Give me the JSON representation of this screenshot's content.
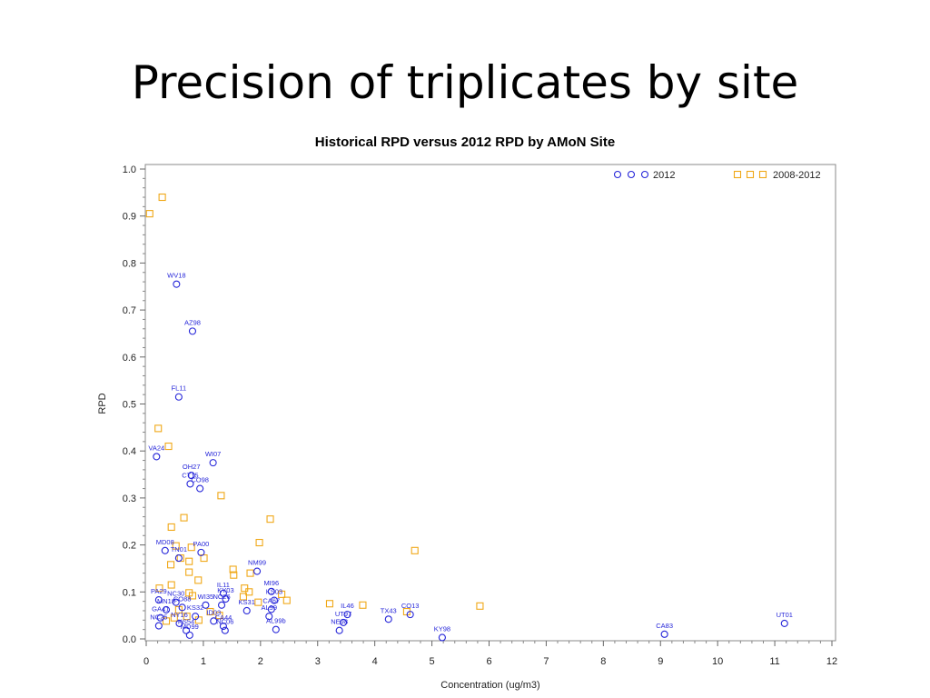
{
  "slide": {
    "title": "Precision of triplicates by site"
  },
  "chart_data": {
    "type": "scatter",
    "title": "Historical RPD versus 2012 RPD by AMoN Site",
    "xlabel": "Concentration (ug/m3)",
    "ylabel": "RPD",
    "xlim": [
      0,
      12
    ],
    "ylim": [
      0,
      1.0
    ],
    "xticks": [
      "0",
      "1",
      "2",
      "3",
      "4",
      "5",
      "6",
      "7",
      "8",
      "9",
      "10",
      "11",
      "12"
    ],
    "yticks": [
      "0.0",
      "0.1",
      "0.2",
      "0.3",
      "0.4",
      "0.5",
      "0.6",
      "0.7",
      "0.8",
      "0.9",
      "1.0"
    ],
    "legend_position": "top-right",
    "series": [
      {
        "name": "2012",
        "marker": "circle",
        "color": "#2626d9",
        "points": [
          {
            "x": 0.53,
            "y": 0.755,
            "label": "WV18"
          },
          {
            "x": 0.81,
            "y": 0.655,
            "label": "AZ98"
          },
          {
            "x": 0.57,
            "y": 0.515,
            "label": "FL11"
          },
          {
            "x": 0.18,
            "y": 0.388,
            "label": "VA24"
          },
          {
            "x": 1.17,
            "y": 0.375,
            "label": "WI07"
          },
          {
            "x": 0.79,
            "y": 0.348,
            "label": "OH27"
          },
          {
            "x": 0.77,
            "y": 0.33,
            "label": "CT15"
          },
          {
            "x": 0.94,
            "y": 0.32,
            "label": "CO98"
          },
          {
            "x": 0.33,
            "y": 0.188,
            "label": "MD08"
          },
          {
            "x": 0.96,
            "y": 0.184,
            "label": "PA00"
          },
          {
            "x": 0.57,
            "y": 0.172,
            "label": "TN01"
          },
          {
            "x": 1.94,
            "y": 0.144,
            "label": "NM99"
          },
          {
            "x": 1.35,
            "y": 0.097,
            "label": "IL11"
          },
          {
            "x": 1.39,
            "y": 0.085,
            "label": "KY03"
          },
          {
            "x": 2.19,
            "y": 0.101,
            "label": "MI96"
          },
          {
            "x": 1.32,
            "y": 0.072,
            "label": "NC26"
          },
          {
            "x": 2.24,
            "y": 0.082,
            "label": "KS03"
          },
          {
            "x": 1.76,
            "y": 0.06,
            "label": "KS31"
          },
          {
            "x": 0.52,
            "y": 0.078,
            "label": "NC30"
          },
          {
            "x": 0.22,
            "y": 0.083,
            "label": "PA29"
          },
          {
            "x": 0.63,
            "y": 0.067,
            "label": "CO88"
          },
          {
            "x": 0.35,
            "y": 0.062,
            "label": "MN18"
          },
          {
            "x": 1.04,
            "y": 0.072,
            "label": "WI35"
          },
          {
            "x": 2.19,
            "y": 0.063,
            "label": "CA67"
          },
          {
            "x": 0.25,
            "y": 0.045,
            "label": "GA41"
          },
          {
            "x": 0.86,
            "y": 0.048,
            "label": "KS32"
          },
          {
            "x": 1.18,
            "y": 0.038,
            "label": "ID03"
          },
          {
            "x": 2.15,
            "y": 0.048,
            "label": "AL99"
          },
          {
            "x": 0.58,
            "y": 0.033,
            "label": "NY16"
          },
          {
            "x": 1.35,
            "y": 0.027,
            "label": "CA44"
          },
          {
            "x": 0.22,
            "y": 0.028,
            "label": "NC25"
          },
          {
            "x": 0.7,
            "y": 0.018,
            "label": "KS54"
          },
          {
            "x": 1.38,
            "y": 0.018,
            "label": "NC06"
          },
          {
            "x": 0.76,
            "y": 0.008,
            "label": "MD99"
          },
          {
            "x": 2.27,
            "y": 0.02,
            "label": "AL99b"
          },
          {
            "x": 3.52,
            "y": 0.052,
            "label": "IL46"
          },
          {
            "x": 3.45,
            "y": 0.035,
            "label": "UT97"
          },
          {
            "x": 3.38,
            "y": 0.018,
            "label": "NE98"
          },
          {
            "x": 4.24,
            "y": 0.042,
            "label": "TX43"
          },
          {
            "x": 4.62,
            "y": 0.052,
            "label": "CO13"
          },
          {
            "x": 5.18,
            "y": 0.003,
            "label": "KY98"
          },
          {
            "x": 9.07,
            "y": 0.01,
            "label": "CA83"
          },
          {
            "x": 11.17,
            "y": 0.033,
            "label": "UT01"
          }
        ]
      },
      {
        "name": "2008-2012",
        "marker": "square",
        "color": "#f0a818",
        "points": [
          {
            "x": 0.06,
            "y": 0.905
          },
          {
            "x": 0.28,
            "y": 0.94
          },
          {
            "x": 0.21,
            "y": 0.448
          },
          {
            "x": 0.39,
            "y": 0.41
          },
          {
            "x": 1.31,
            "y": 0.305
          },
          {
            "x": 0.66,
            "y": 0.258
          },
          {
            "x": 0.44,
            "y": 0.238
          },
          {
            "x": 2.17,
            "y": 0.255
          },
          {
            "x": 0.52,
            "y": 0.198
          },
          {
            "x": 0.79,
            "y": 0.195
          },
          {
            "x": 4.7,
            "y": 0.188
          },
          {
            "x": 1.98,
            "y": 0.205
          },
          {
            "x": 0.6,
            "y": 0.172
          },
          {
            "x": 1.01,
            "y": 0.172
          },
          {
            "x": 0.75,
            "y": 0.165
          },
          {
            "x": 0.43,
            "y": 0.158
          },
          {
            "x": 1.52,
            "y": 0.148
          },
          {
            "x": 0.75,
            "y": 0.142
          },
          {
            "x": 1.53,
            "y": 0.136
          },
          {
            "x": 1.82,
            "y": 0.14
          },
          {
            "x": 0.91,
            "y": 0.125
          },
          {
            "x": 0.44,
            "y": 0.115
          },
          {
            "x": 0.23,
            "y": 0.108
          },
          {
            "x": 1.72,
            "y": 0.108
          },
          {
            "x": 0.75,
            "y": 0.098
          },
          {
            "x": 0.81,
            "y": 0.092
          },
          {
            "x": 1.8,
            "y": 0.1
          },
          {
            "x": 2.37,
            "y": 0.095
          },
          {
            "x": 1.7,
            "y": 0.09
          },
          {
            "x": 2.46,
            "y": 0.082
          },
          {
            "x": 1.96,
            "y": 0.078
          },
          {
            "x": 3.21,
            "y": 0.075
          },
          {
            "x": 3.79,
            "y": 0.072
          },
          {
            "x": 5.84,
            "y": 0.07
          },
          {
            "x": 0.57,
            "y": 0.062
          },
          {
            "x": 1.12,
            "y": 0.058
          },
          {
            "x": 4.56,
            "y": 0.058
          },
          {
            "x": 0.49,
            "y": 0.045
          },
          {
            "x": 1.28,
            "y": 0.05
          },
          {
            "x": 0.92,
            "y": 0.04
          },
          {
            "x": 0.71,
            "y": 0.048
          },
          {
            "x": 0.35,
            "y": 0.038
          }
        ]
      }
    ]
  }
}
